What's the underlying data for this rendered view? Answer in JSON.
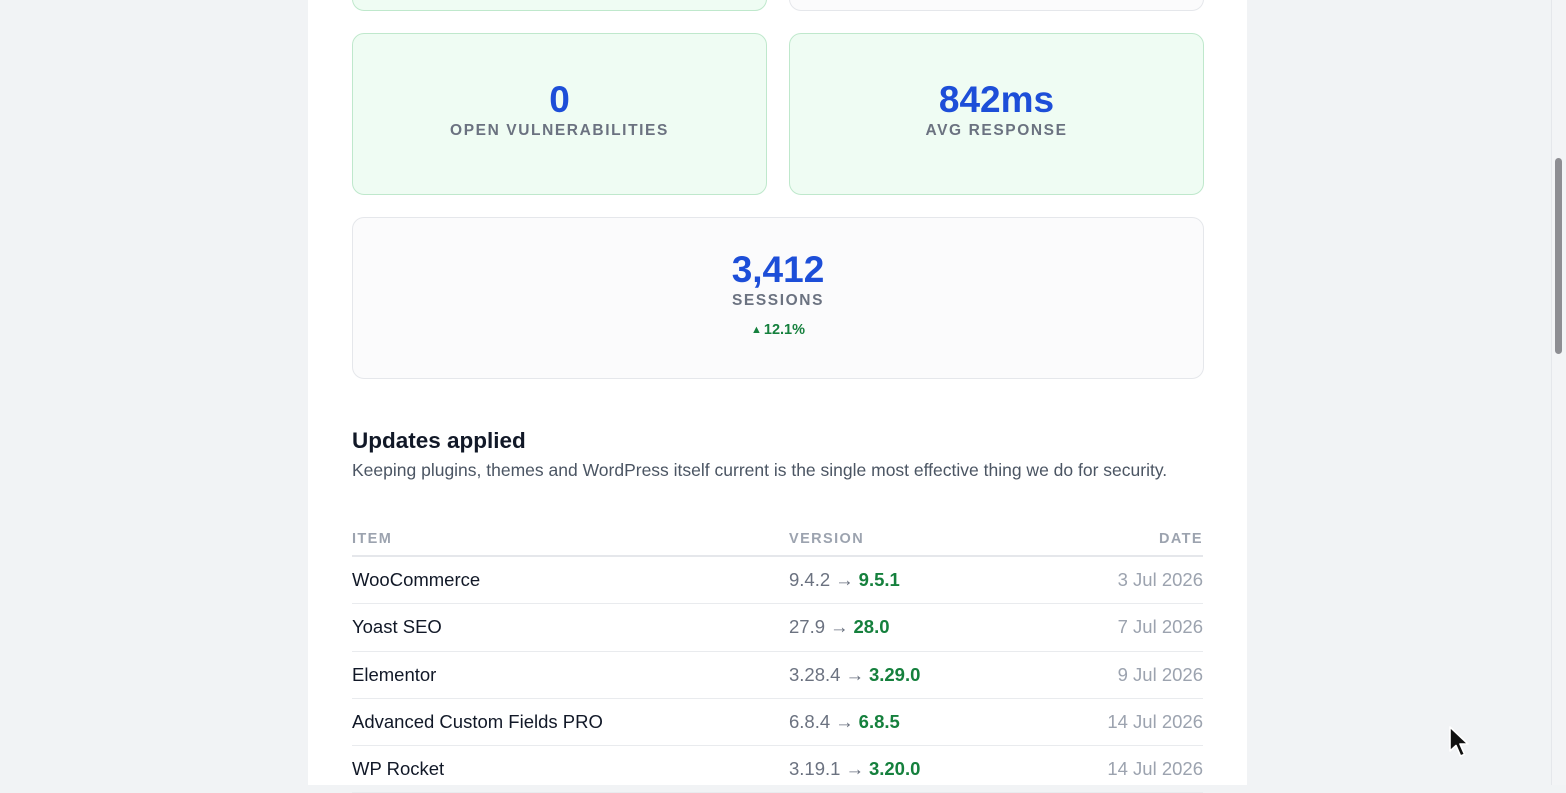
{
  "stats": [
    {
      "value": "0",
      "label": "OPEN VULNERABILITIES"
    },
    {
      "value": "842ms",
      "label": "AVG RESPONSE"
    },
    {
      "value": "3,412",
      "label": "SESSIONS",
      "delta": "12.1%"
    }
  ],
  "updates": {
    "title": "Updates applied",
    "description": "Keeping plugins, themes and WordPress itself current is the single most effective thing we do for security.",
    "columns": {
      "item": "ITEM",
      "version": "VERSION",
      "date": "DATE"
    },
    "arrow": "→",
    "rows": [
      {
        "item": "WooCommerce",
        "from": "9.4.2",
        "to": "9.5.1",
        "date": "3 Jul 2026"
      },
      {
        "item": "Yoast SEO",
        "from": "27.9",
        "to": "28.0",
        "date": "7 Jul 2026"
      },
      {
        "item": "Elementor",
        "from": "3.28.4",
        "to": "3.29.0",
        "date": "9 Jul 2026"
      },
      {
        "item": "Advanced Custom Fields PRO",
        "from": "6.8.4",
        "to": "6.8.5",
        "date": "14 Jul 2026"
      },
      {
        "item": "WP Rocket",
        "from": "3.19.1",
        "to": "3.20.0",
        "date": "14 Jul 2026"
      }
    ]
  },
  "colors": {
    "accent": "#1d4ed8",
    "positive": "#15803d",
    "card_green_bg": "#effcf3"
  },
  "icons": {
    "delta": "triangle-up-icon",
    "cursor": "mouse-pointer-icon"
  }
}
